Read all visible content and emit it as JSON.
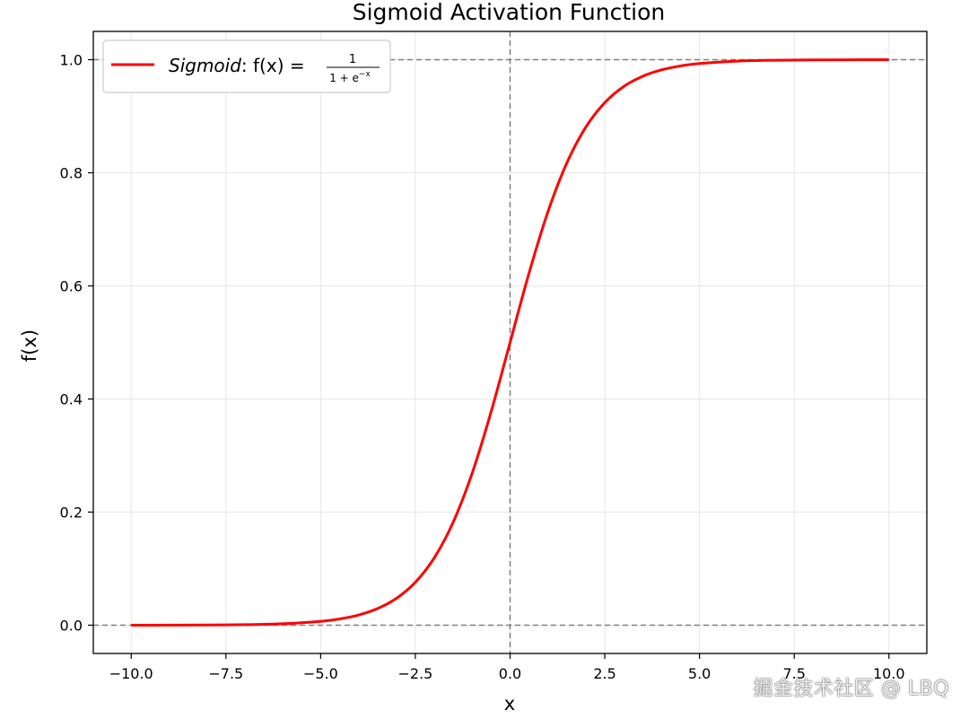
{
  "chart_data": {
    "type": "line",
    "title": "Sigmoid Activation Function",
    "xlabel": "x",
    "ylabel": "f(x)",
    "xlim": [
      -11.0,
      11.0
    ],
    "ylim": [
      -0.05,
      1.05
    ],
    "x_ticks": [
      -10.0,
      -7.5,
      -5.0,
      -2.5,
      0.0,
      2.5,
      5.0,
      7.5,
      10.0
    ],
    "x_tick_labels": [
      "−10.0",
      "−7.5",
      "−5.0",
      "−2.5",
      "0.0",
      "2.5",
      "5.0",
      "7.5",
      "10.0"
    ],
    "y_ticks": [
      0.0,
      0.2,
      0.4,
      0.6,
      0.8,
      1.0
    ],
    "y_tick_labels": [
      "0.0",
      "0.2",
      "0.4",
      "0.6",
      "0.8",
      "1.0"
    ],
    "grid": true,
    "legend_position": "top-left",
    "reference_lines": [
      {
        "axis": "y",
        "value": 0.0,
        "style": "dashed"
      },
      {
        "axis": "y",
        "value": 1.0,
        "style": "dashed"
      },
      {
        "axis": "x",
        "value": 0.0,
        "style": "dashed"
      }
    ],
    "series": [
      {
        "name": "Sigmoid: f(x) = 1/(1+e^-x)",
        "color": "#ff0000",
        "x": [
          -10.0,
          -9.0,
          -8.0,
          -7.0,
          -6.0,
          -5.0,
          -4.5,
          -4.0,
          -3.5,
          -3.0,
          -2.5,
          -2.0,
          -1.5,
          -1.0,
          -0.5,
          0.0,
          0.5,
          1.0,
          1.5,
          2.0,
          2.5,
          3.0,
          3.5,
          4.0,
          4.5,
          5.0,
          6.0,
          7.0,
          8.0,
          9.0,
          10.0
        ],
        "y": [
          0.0,
          0.0001,
          0.0003,
          0.0009,
          0.0025,
          0.0067,
          0.011,
          0.018,
          0.0293,
          0.0474,
          0.0759,
          0.1192,
          0.1824,
          0.2689,
          0.3775,
          0.5,
          0.6225,
          0.7311,
          0.8176,
          0.8808,
          0.9241,
          0.9526,
          0.9707,
          0.982,
          0.989,
          0.9933,
          0.9975,
          0.9991,
          0.9997,
          0.9999,
          1.0
        ]
      }
    ]
  },
  "legend": {
    "label_main": "Sigmoid",
    "label_colon": ": f(x) =",
    "frac_num": "1",
    "frac_den_base": "1 + e",
    "frac_den_sup": "−x"
  },
  "watermark": "掘金技术社区 @ LBQ",
  "colors": {
    "curve": "#ff0000",
    "grid": "#e6e6e6",
    "reference": "#808080",
    "axes": "#000000"
  }
}
